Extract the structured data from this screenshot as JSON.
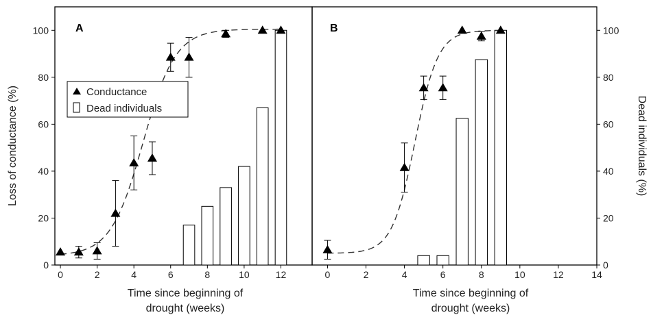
{
  "chart_data": [
    {
      "type": "bar+scatter",
      "panel_label": "A",
      "xlabel": [
        "Time since beginning of",
        "drought (weeks)"
      ],
      "ylabel": "Loss of conductance (%)",
      "xlim": [
        -0.3,
        13.7
      ],
      "ylim": [
        0,
        110
      ],
      "xticks": [
        0,
        2,
        4,
        6,
        8,
        10,
        12
      ],
      "yticks": [
        0,
        20,
        40,
        60,
        80,
        100
      ],
      "legend": {
        "placement": "center-left",
        "items": [
          {
            "name": "Conductance",
            "marker": "triangle"
          },
          {
            "name": "Dead individuals",
            "marker": "open-bar"
          }
        ]
      },
      "bars": {
        "name": "Dead individuals",
        "x": [
          7,
          8,
          9,
          10,
          11,
          12
        ],
        "values": [
          17,
          25,
          33,
          42,
          67,
          100
        ]
      },
      "points": {
        "name": "Conductance",
        "x": [
          0,
          1,
          2,
          3,
          4,
          5,
          6,
          7,
          9,
          11,
          12
        ],
        "y": [
          5.5,
          5.5,
          6,
          22,
          43.5,
          45.5,
          88.5,
          88.5,
          98.5,
          100,
          100
        ],
        "err": [
          0,
          2.5,
          3.5,
          14,
          11.5,
          7,
          6,
          8.5,
          1.5,
          0,
          0
        ]
      },
      "curve": {
        "form": "logistic",
        "min": 4,
        "max": 100.5,
        "midpoint": 4.5,
        "scale": 0.88
      }
    },
    {
      "type": "bar+scatter",
      "panel_label": "B",
      "xlabel": [
        "Time since beginning of",
        "drought (weeks)"
      ],
      "ylabel": "Dead individuals (%)",
      "xlim": [
        -0.8,
        14
      ],
      "ylim": [
        0,
        110
      ],
      "xticks": [
        0,
        2,
        4,
        6,
        8,
        10,
        12,
        14
      ],
      "yticks": [
        0,
        20,
        40,
        60,
        80,
        100
      ],
      "bars": {
        "name": "Dead individuals",
        "x": [
          5,
          6,
          7,
          8,
          9
        ],
        "values": [
          4,
          4,
          62.5,
          87.5,
          100
        ]
      },
      "points": {
        "name": "Conductance",
        "x": [
          0,
          4,
          5,
          6,
          7,
          8,
          9
        ],
        "y": [
          6.5,
          41.5,
          75.5,
          75.5,
          100,
          97.5,
          100
        ],
        "err": [
          4,
          10.5,
          5,
          5,
          0,
          2,
          0
        ]
      },
      "curve": {
        "form": "logistic",
        "min": 5,
        "max": 100,
        "midpoint": 4.55,
        "scale": 0.6
      }
    }
  ]
}
